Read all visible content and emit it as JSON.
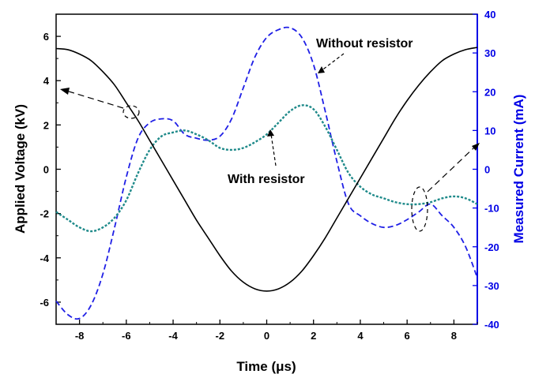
{
  "chart_data": {
    "type": "line",
    "xlabel": "Time (μs)",
    "ylabel_left": "Applied Voltage (kV)",
    "ylabel_right": "Measured Current (mA)",
    "xlim": [
      -9,
      9
    ],
    "ylim_left": [
      -7,
      7
    ],
    "ylim_right": [
      -40,
      40
    ],
    "x_ticks": [
      "-8",
      "-6",
      "-4",
      "-2",
      "0",
      "2",
      "4",
      "6",
      "8"
    ],
    "y_left_ticks": [
      "-6",
      "-4",
      "-2",
      "0",
      "2",
      "4",
      "6"
    ],
    "y_right_ticks": [
      "-40",
      "-30",
      "-20",
      "-10",
      "0",
      "10",
      "20",
      "30",
      "40"
    ],
    "grid": false,
    "colors": {
      "voltage": "#000000",
      "without": "#1f1fe6",
      "with": "#1f8a8a",
      "right_axis": "#0000e6"
    },
    "series": [
      {
        "axis": "left",
        "style": "solid",
        "x": [
          -9,
          -8.5,
          -8,
          -7.5,
          -7,
          -6.5,
          -6,
          -5.5,
          -5,
          -4.5,
          -4,
          -3.5,
          -3,
          -2.5,
          -2,
          -1.5,
          -1,
          -0.5,
          0,
          0.5,
          1,
          1.5,
          2,
          2.5,
          3,
          3.5,
          4,
          4.5,
          5,
          5.5,
          6,
          6.5,
          7,
          7.5,
          8,
          8.5,
          9
        ],
        "values": [
          5.45,
          5.4,
          5.2,
          4.9,
          4.4,
          3.8,
          3.0,
          2.2,
          1.3,
          0.4,
          -0.5,
          -1.4,
          -2.3,
          -3.1,
          -3.9,
          -4.6,
          -5.1,
          -5.4,
          -5.5,
          -5.4,
          -5.1,
          -4.6,
          -3.9,
          -3.1,
          -2.2,
          -1.3,
          -0.4,
          0.5,
          1.4,
          2.3,
          3.1,
          3.8,
          4.4,
          4.9,
          5.2,
          5.4,
          5.5
        ]
      },
      {
        "name": "Without resistor",
        "axis": "right",
        "style": "dashed",
        "x": [
          -9,
          -8.5,
          -8,
          -7.5,
          -7,
          -6.5,
          -6,
          -5.5,
          -5,
          -4.5,
          -4,
          -3.5,
          -3,
          -2.5,
          -2,
          -1.5,
          -1,
          -0.5,
          0,
          0.5,
          1,
          1.5,
          2,
          2.5,
          3,
          3.5,
          4,
          4.5,
          5,
          5.5,
          6,
          6.5,
          7,
          7.5,
          8,
          8.5,
          9
        ],
        "values": [
          -34,
          -37.5,
          -38.5,
          -35,
          -27,
          -15,
          -2,
          8,
          12,
          13,
          12.5,
          9,
          8,
          7.5,
          8.5,
          13,
          21,
          29,
          34,
          36,
          36.5,
          34,
          27,
          15,
          2,
          -9,
          -12,
          -14,
          -15,
          -14.5,
          -13,
          -11,
          -9,
          -12,
          -15,
          -20,
          -28
        ]
      },
      {
        "name": "With resistor",
        "axis": "right",
        "style": "dotted",
        "x": [
          -9,
          -8.5,
          -8,
          -7.5,
          -7,
          -6.5,
          -6,
          -5.5,
          -5,
          -4.5,
          -4,
          -3.5,
          -3,
          -2.5,
          -2,
          -1.5,
          -1,
          -0.5,
          0,
          0.5,
          1,
          1.5,
          2,
          2.5,
          3,
          3.5,
          4,
          4.5,
          5,
          5.5,
          6,
          6.5,
          7,
          7.5,
          8,
          8.5,
          9
        ],
        "values": [
          -11,
          -13,
          -15,
          -16,
          -15,
          -12.5,
          -8,
          -1,
          5,
          8.5,
          9.5,
          10,
          9,
          7.5,
          5.5,
          5,
          5.5,
          7,
          9,
          12,
          15,
          16.5,
          15.5,
          11,
          5,
          -1,
          -4.5,
          -6.5,
          -7.5,
          -8.5,
          -9,
          -9,
          -8.5,
          -7.5,
          -7,
          -7.5,
          -9
        ]
      }
    ],
    "annotations": {
      "without": "Without resistor",
      "with": "With resistor"
    }
  }
}
